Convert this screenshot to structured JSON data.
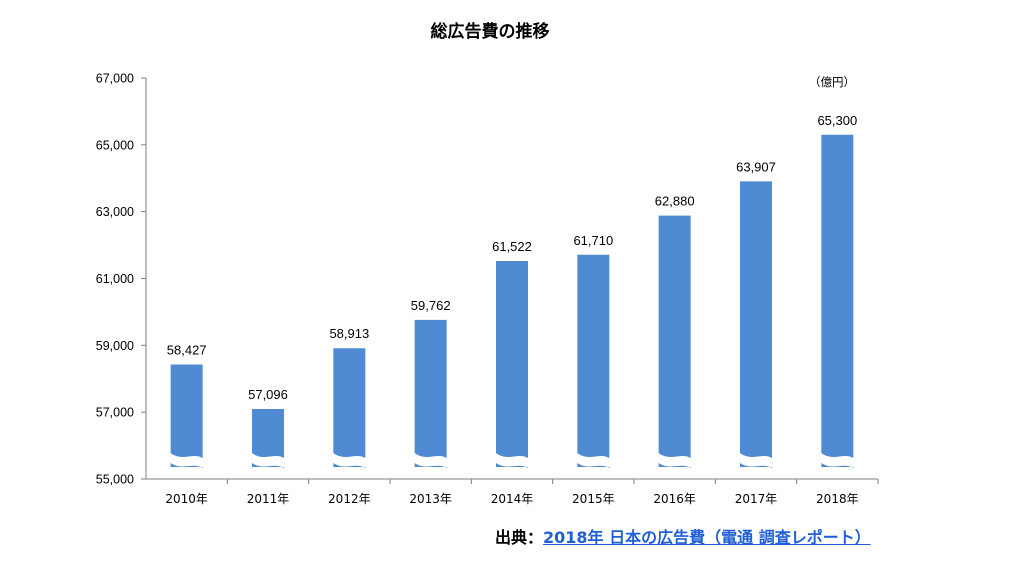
{
  "chart_data": {
    "type": "bar",
    "title": "総広告費の推移",
    "unit_label": "（億円）",
    "categories": [
      "2010年",
      "2011年",
      "2012年",
      "2013年",
      "2014年",
      "2015年",
      "2016年",
      "2017年",
      "2018年"
    ],
    "values": [
      58427,
      57096,
      58913,
      59762,
      61522,
      61710,
      62880,
      63907,
      65300
    ],
    "data_labels": [
      "58,427",
      "57,096",
      "58,913",
      "59,762",
      "61,522",
      "61,710",
      "62,880",
      "63,907",
      "65,300"
    ],
    "yticks": [
      "55,000",
      "57,000",
      "59,000",
      "61,000",
      "63,000",
      "65,000",
      "67,000"
    ],
    "ylim": [
      55000,
      67000
    ],
    "axis_break": true,
    "bar_color": "#4f8ad2",
    "grid": false
  },
  "source": {
    "prefix": "出典：",
    "link_text": "2018年 日本の広告費（電通 調査レポート）",
    "link_color": "#1f5fd6"
  }
}
